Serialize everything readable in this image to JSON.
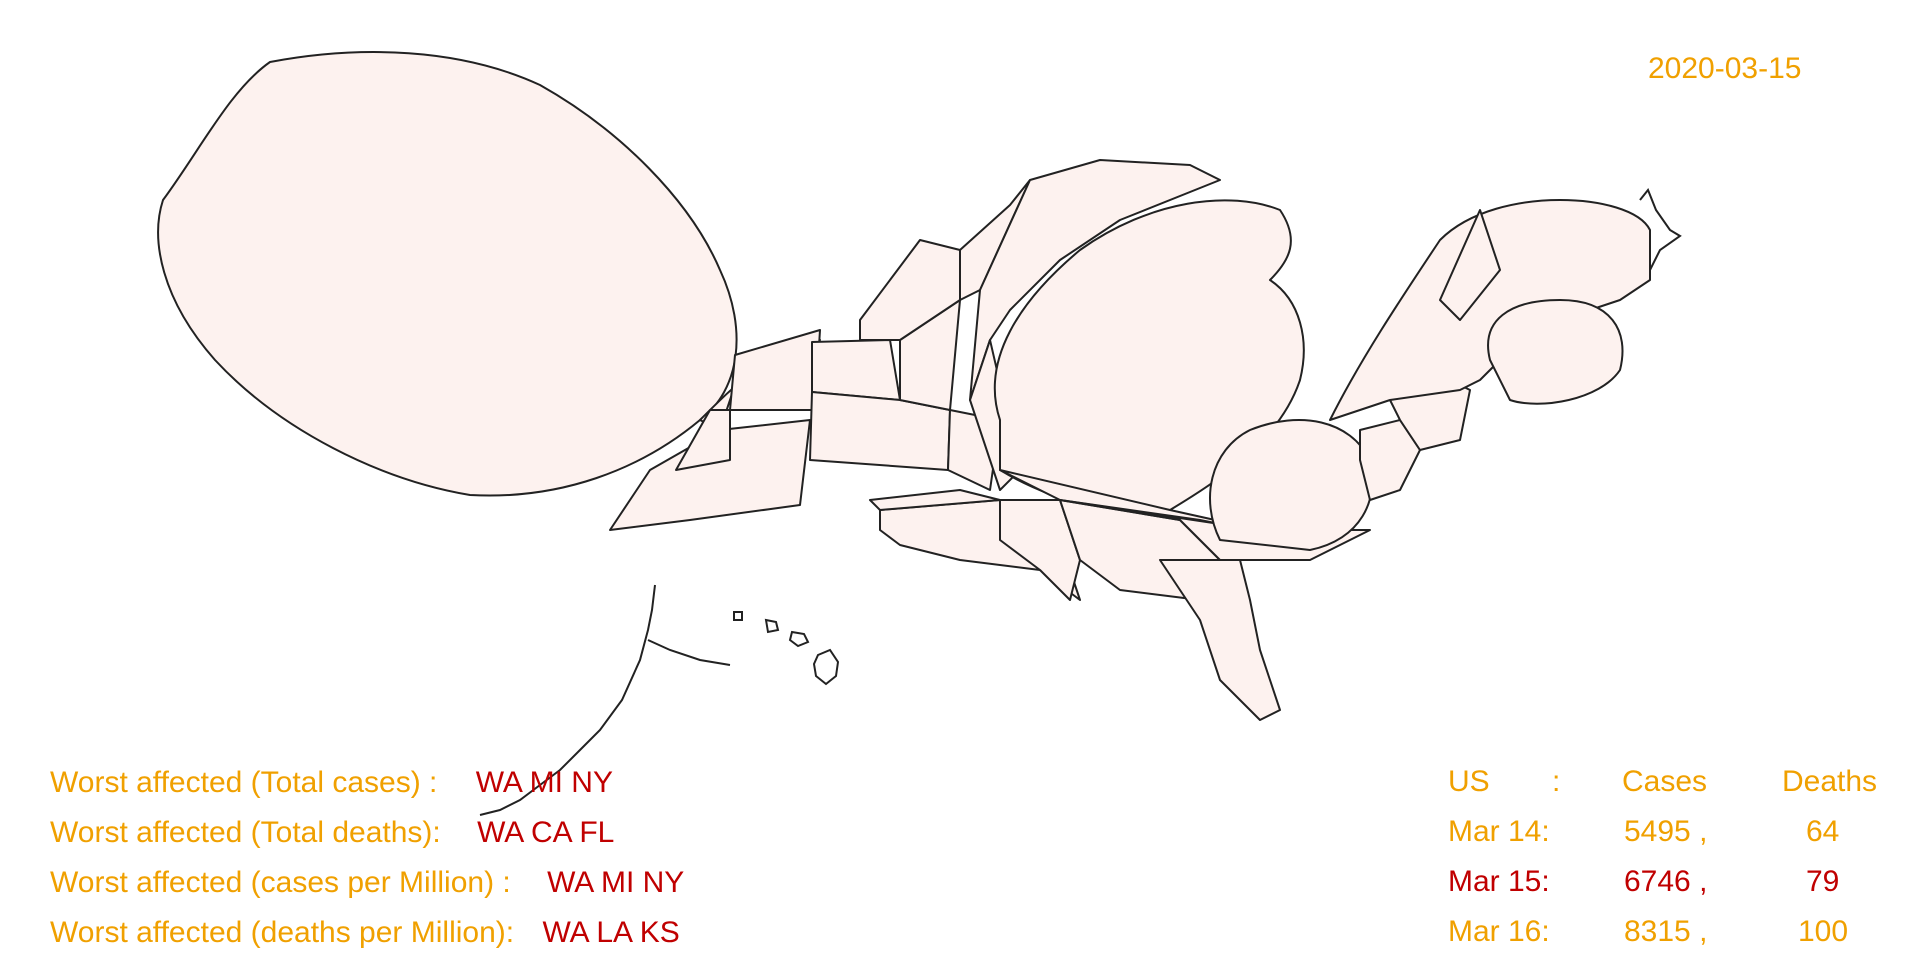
{
  "date": "2020-03-15",
  "worst_affected": [
    {
      "label": "Worst affected (Total cases) :",
      "states": "WA MI NY"
    },
    {
      "label": "Worst affected (Total deaths):",
      "states": "WA CA FL"
    },
    {
      "label": "Worst affected (cases per Million) :",
      "states": "WA MI NY"
    },
    {
      "label": "Worst affected (deaths per Million):",
      "states": "WA LA KS"
    }
  ],
  "stats": {
    "header": {
      "country": "US",
      "sep": ":",
      "cases": "Cases",
      "deaths": "Deaths"
    },
    "rows": [
      {
        "date": "Mar 14:",
        "cases": "5495 ,",
        "deaths": "64",
        "highlight": false
      },
      {
        "date": "Mar 15:",
        "cases": "6746 ,",
        "deaths": "79",
        "highlight": true
      },
      {
        "date": "Mar 16:",
        "cases": "8315 ,",
        "deaths": "100",
        "highlight": false
      }
    ]
  },
  "colors": {
    "label": "#f0a000",
    "highlight": "#c00000",
    "state_fill": "#fdf2ef",
    "state_stroke": "#222222"
  }
}
